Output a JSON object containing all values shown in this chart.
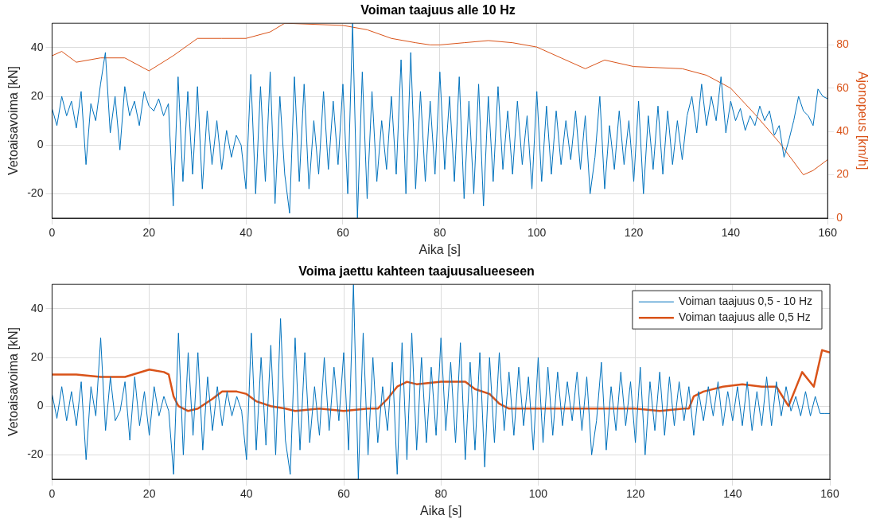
{
  "chart_data": [
    {
      "type": "line",
      "title": "Voiman taajuus alle 10 Hz",
      "xlabel": "Aika [s]",
      "ylabel": "Vetoaisavoima [kN]",
      "y2label": "Ajonopeus [km/h]",
      "xlim": [
        0,
        160
      ],
      "xticks": [
        0,
        20,
        40,
        60,
        80,
        100,
        120,
        140,
        160
      ],
      "ylim": [
        -30,
        50
      ],
      "yticks": [
        -20,
        0,
        20,
        40
      ],
      "y2lim": [
        0,
        90
      ],
      "y2ticks": [
        0,
        20,
        40,
        60,
        80
      ],
      "grid": true,
      "legend": false,
      "marker": "none",
      "line_style": "solid",
      "x": [
        0,
        1,
        2,
        3,
        4,
        5,
        6,
        7,
        8,
        9,
        10,
        11,
        12,
        13,
        14,
        15,
        16,
        17,
        18,
        19,
        20,
        21,
        22,
        23,
        24,
        25,
        26,
        27,
        28,
        29,
        30,
        31,
        32,
        33,
        34,
        35,
        36,
        37,
        38,
        39,
        40,
        41,
        42,
        43,
        44,
        45,
        46,
        47,
        48,
        49,
        50,
        51,
        52,
        53,
        54,
        55,
        56,
        57,
        58,
        59,
        60,
        61,
        62,
        63,
        64,
        65,
        66,
        67,
        68,
        69,
        70,
        71,
        72,
        73,
        74,
        75,
        76,
        77,
        78,
        79,
        80,
        81,
        82,
        83,
        84,
        85,
        86,
        87,
        88,
        89,
        90,
        91,
        92,
        93,
        94,
        95,
        96,
        97,
        98,
        99,
        100,
        101,
        102,
        103,
        104,
        105,
        106,
        107,
        108,
        109,
        110,
        111,
        112,
        113,
        114,
        115,
        116,
        117,
        118,
        119,
        120,
        121,
        122,
        123,
        124,
        125,
        126,
        127,
        128,
        129,
        130,
        131,
        132,
        133,
        134,
        135,
        136,
        137,
        138,
        139,
        140,
        141,
        142,
        143,
        144,
        145,
        146,
        147,
        148,
        149,
        150,
        151,
        152,
        153,
        154,
        155,
        156,
        157,
        158,
        159,
        160
      ],
      "series": [
        {
          "color": "#0072bd",
          "values": [
            15,
            8,
            20,
            12,
            18,
            7,
            22,
            -8,
            17,
            10,
            25,
            38,
            5,
            20,
            -2,
            24,
            12,
            18,
            8,
            22,
            16,
            14,
            19,
            12,
            17,
            -25,
            28,
            -15,
            22,
            -12,
            24,
            -18,
            14,
            -8,
            10,
            -10,
            6,
            -5,
            4,
            0,
            -18,
            29,
            -20,
            24,
            -15,
            30,
            -24,
            20,
            -12,
            -28,
            28,
            -15,
            25,
            -18,
            10,
            -12,
            22,
            -10,
            18,
            -8,
            25,
            -20,
            50,
            -30,
            30,
            -22,
            22,
            -15,
            10,
            -10,
            20,
            -12,
            35,
            -20,
            38,
            -18,
            22,
            -15,
            18,
            -12,
            30,
            -10,
            20,
            -15,
            28,
            -22,
            18,
            -20,
            25,
            -25,
            20,
            -15,
            24,
            -10,
            14,
            -12,
            18,
            -8,
            12,
            -18,
            22,
            -15,
            16,
            -12,
            14,
            -8,
            10,
            -6,
            14,
            -10,
            12,
            -20,
            -5,
            20,
            -18,
            8,
            -10,
            14,
            -8,
            10,
            -15,
            18,
            -20,
            12,
            -10,
            16,
            -12,
            14,
            -8,
            10,
            -6,
            12,
            20,
            5,
            25,
            8,
            20,
            10,
            28,
            5,
            18,
            10,
            15,
            6,
            12,
            8,
            16,
            10,
            14,
            4,
            8,
            -5,
            2,
            10,
            20,
            14,
            12,
            8,
            23,
            20,
            19
          ]
        },
        {
          "color": "#d95319",
          "axis": "y2",
          "x": [
            0,
            2,
            5,
            10,
            15,
            20,
            25,
            30,
            35,
            40,
            45,
            48,
            60,
            65,
            70,
            75,
            78,
            80,
            85,
            90,
            95,
            100,
            105,
            110,
            114,
            120,
            130,
            135,
            140,
            145,
            150,
            155,
            157,
            160
          ],
          "values": [
            75,
            77,
            72,
            74,
            74,
            68,
            75,
            83,
            83,
            83,
            86,
            90,
            89,
            87,
            83,
            81,
            80,
            80,
            81,
            82,
            81,
            79,
            74,
            69,
            73,
            70,
            69,
            66,
            60,
            48,
            35,
            20,
            22,
            27
          ]
        }
      ]
    },
    {
      "type": "line",
      "title": "Voima jaettu kahteen taajuusalueeseen",
      "xlabel": "Aika [s]",
      "ylabel": "Vetoaisavoima [kN]",
      "xlim": [
        0,
        160
      ],
      "xticks": [
        0,
        20,
        40,
        60,
        80,
        100,
        120,
        140,
        160
      ],
      "ylim": [
        -30,
        50
      ],
      "yticks": [
        -20,
        0,
        20,
        40
      ],
      "grid": true,
      "legend": "top right",
      "marker": "none",
      "line_style": "solid",
      "x": [
        0,
        1,
        2,
        3,
        4,
        5,
        6,
        7,
        8,
        9,
        10,
        11,
        12,
        13,
        14,
        15,
        16,
        17,
        18,
        19,
        20,
        21,
        22,
        23,
        24,
        25,
        26,
        27,
        28,
        29,
        30,
        31,
        32,
        33,
        34,
        35,
        36,
        37,
        38,
        39,
        40,
        41,
        42,
        43,
        44,
        45,
        46,
        47,
        48,
        49,
        50,
        51,
        52,
        53,
        54,
        55,
        56,
        57,
        58,
        59,
        60,
        61,
        62,
        63,
        64,
        65,
        66,
        67,
        68,
        69,
        70,
        71,
        72,
        73,
        74,
        75,
        76,
        77,
        78,
        79,
        80,
        81,
        82,
        83,
        84,
        85,
        86,
        87,
        88,
        89,
        90,
        91,
        92,
        93,
        94,
        95,
        96,
        97,
        98,
        99,
        100,
        101,
        102,
        103,
        104,
        105,
        106,
        107,
        108,
        109,
        110,
        111,
        112,
        113,
        114,
        115,
        116,
        117,
        118,
        119,
        120,
        121,
        122,
        123,
        124,
        125,
        126,
        127,
        128,
        129,
        130,
        131,
        132,
        133,
        134,
        135,
        136,
        137,
        138,
        139,
        140,
        141,
        142,
        143,
        144,
        145,
        146,
        147,
        148,
        149,
        150,
        151,
        152,
        153,
        154,
        155,
        156,
        157,
        158,
        159,
        160
      ],
      "series": [
        {
          "name": "Voiman taajuus 0,5 - 10 Hz",
          "color": "#0072bd",
          "values": [
            5,
            -5,
            8,
            -6,
            6,
            -8,
            10,
            -22,
            8,
            -4,
            28,
            -10,
            12,
            -6,
            -2,
            10,
            -14,
            12,
            -8,
            6,
            -12,
            8,
            -4,
            4,
            -2,
            -28,
            30,
            -20,
            22,
            -12,
            22,
            -18,
            12,
            -10,
            8,
            -8,
            6,
            -4,
            4,
            -2,
            -22,
            30,
            -18,
            20,
            -16,
            25,
            -20,
            36,
            -14,
            -28,
            28,
            -18,
            22,
            -15,
            8,
            -12,
            20,
            -10,
            16,
            -6,
            22,
            -18,
            50,
            -30,
            30,
            -20,
            20,
            -15,
            8,
            -10,
            18,
            -28,
            26,
            -22,
            30,
            -18,
            20,
            -15,
            16,
            -12,
            28,
            -10,
            18,
            -15,
            26,
            -22,
            18,
            -18,
            22,
            -25,
            20,
            -15,
            22,
            -10,
            14,
            -12,
            16,
            -8,
            12,
            -18,
            20,
            -15,
            16,
            -12,
            14,
            -8,
            10,
            -6,
            14,
            -10,
            12,
            -20,
            -6,
            18,
            -18,
            8,
            -10,
            14,
            -8,
            10,
            -15,
            16,
            -20,
            10,
            -10,
            14,
            -12,
            12,
            -8,
            10,
            -6,
            8,
            -12,
            6,
            -6,
            8,
            -4,
            10,
            -8,
            6,
            -6,
            8,
            -8,
            10,
            -10,
            6,
            -8,
            12,
            -8,
            10,
            -4,
            8,
            -2,
            4,
            -4,
            6,
            -4,
            4,
            -3,
            -3,
            -3
          ]
        },
        {
          "name": "Voiman taajuus alle 0,5 Hz",
          "color": "#d95319",
          "x": [
            0,
            5,
            10,
            15,
            20,
            23,
            24,
            25,
            26,
            28,
            30,
            33,
            35,
            38,
            40,
            42,
            45,
            48,
            50,
            55,
            60,
            65,
            67,
            69,
            71,
            73,
            75,
            80,
            85,
            87,
            90,
            92,
            94,
            100,
            110,
            120,
            125,
            130,
            131,
            132,
            134,
            138,
            142,
            146,
            149,
            151.5,
            154.3,
            156.7,
            158.4,
            160
          ],
          "values": [
            13,
            13,
            12,
            12,
            15,
            14,
            13,
            4,
            0,
            -2,
            -1,
            3,
            6,
            6,
            5,
            2,
            0,
            -1,
            -2,
            -1,
            -2,
            -1,
            -1,
            3,
            8,
            10,
            9,
            10,
            10,
            7,
            5,
            1,
            -1,
            -1,
            -1,
            -1,
            -2,
            -1,
            -1,
            4,
            6,
            8,
            9,
            8,
            8,
            0,
            14,
            8,
            23,
            22
          ]
        }
      ]
    }
  ]
}
